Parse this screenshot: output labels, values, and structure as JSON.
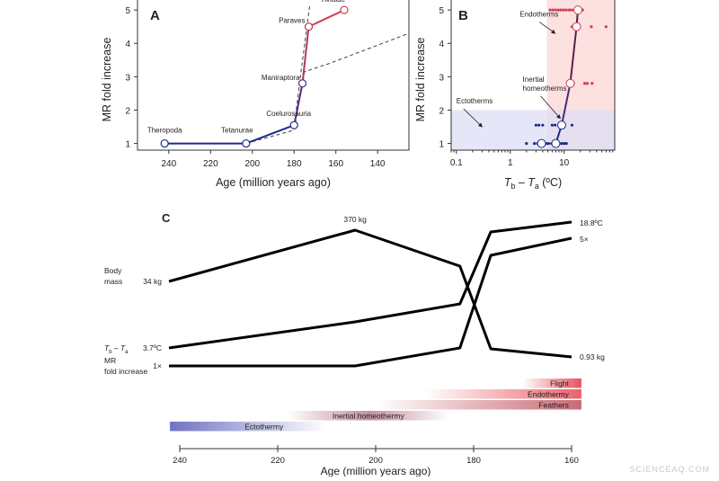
{
  "colors": {
    "ecto": "#1f2a8a",
    "endo": "#d0404e",
    "ecto_bg": "#dcdff5",
    "endo_bg": "#fde0e0",
    "dash": "#444444"
  },
  "watermark": "SCIENCEAQ.COM",
  "chart_data": [
    {
      "panel": "A",
      "type": "line",
      "xlabel": "Age (million years ago)",
      "ylabel": "MR fold increase",
      "xlim": [
        255,
        125
      ],
      "ylim": [
        0.8,
        5.3
      ],
      "xticks": [
        240,
        220,
        200,
        180,
        160,
        140
      ],
      "yticks": [
        1,
        2,
        3,
        4,
        5
      ],
      "points": [
        {
          "label": "Theropoda",
          "x": 242,
          "y": 1.0
        },
        {
          "label": "Tetanurae",
          "x": 203,
          "y": 1.0
        },
        {
          "label": "Coelurosauria",
          "x": 180,
          "y": 1.55
        },
        {
          "label": "Maniraptora",
          "x": 176,
          "y": 2.8
        },
        {
          "label": "Paraves",
          "x": 173,
          "y": 4.5
        },
        {
          "label": "Avialae",
          "x": 156,
          "y": 5.0
        }
      ],
      "dashed": [
        [
          [
            203,
            1.0
          ],
          [
            180,
            1.4
          ],
          [
            175,
            3.15
          ],
          [
            163,
            3.4
          ],
          [
            125,
            4.3
          ]
        ],
        [
          [
            180,
            1.45
          ],
          [
            177,
            3.0
          ],
          [
            172.5,
            5.15
          ]
        ]
      ]
    },
    {
      "panel": "B",
      "type": "scatter",
      "xlabel_main": "T",
      "xlabel_sub1": "b",
      "xlabel_mid": " – T",
      "xlabel_sub2": "a",
      "xlabel_unit": " (ºC)",
      "ylabel": "MR fold increase",
      "xscale": "log",
      "xlim": [
        0.08,
        87
      ],
      "ylim": [
        0.8,
        5.3
      ],
      "xticks": [
        0.1,
        1,
        10
      ],
      "yticks": [
        1,
        2,
        3,
        4,
        5
      ],
      "regions": [
        {
          "name": "Endotherms",
          "x_from": 4.8,
          "color": "endo_bg"
        },
        {
          "name": "Ectotherms",
          "y_to": 2,
          "color": "ecto_bg"
        }
      ],
      "annotations": [
        {
          "text": "Endotherms",
          "at": [
            1.5,
            4.8
          ],
          "arrow_to": [
            6.8,
            4.3
          ]
        },
        {
          "text": [
            "Inertial",
            "homeotherms"
          ],
          "at": [
            1.7,
            2.85
          ],
          "arrow_to": [
            8.5,
            1.75
          ]
        },
        {
          "text": "Ectotherms",
          "at": [
            0.1,
            2.2
          ],
          "arrow_to": [
            0.3,
            1.5
          ]
        }
      ],
      "means": [
        [
          3.8,
          1
        ],
        [
          7,
          1
        ],
        [
          9,
          1.55
        ],
        [
          13,
          2.8
        ],
        [
          17,
          4.5
        ],
        [
          18,
          5
        ]
      ],
      "dots": [
        [
          2,
          1
        ],
        [
          2.8,
          1
        ],
        [
          3.2,
          1
        ],
        [
          4.5,
          1
        ],
        [
          5,
          1
        ],
        [
          6,
          1
        ],
        [
          8,
          1
        ],
        [
          9,
          1
        ],
        [
          10,
          1
        ],
        [
          11,
          1
        ],
        [
          3,
          1.55
        ],
        [
          3.4,
          1.55
        ],
        [
          4,
          1.55
        ],
        [
          6,
          1.55
        ],
        [
          6.8,
          1.55
        ],
        [
          14,
          1.55
        ],
        [
          15,
          2.8
        ],
        [
          24,
          2.8
        ],
        [
          27,
          2.8
        ],
        [
          33,
          2.8
        ],
        [
          14,
          4.5
        ],
        [
          32,
          4.5
        ],
        [
          60,
          4.5
        ],
        [
          5.5,
          5
        ],
        [
          6.2,
          5
        ],
        [
          7,
          5
        ],
        [
          7.8,
          5
        ],
        [
          8.7,
          5
        ],
        [
          9.8,
          5
        ],
        [
          11,
          5
        ],
        [
          12.5,
          5
        ],
        [
          14,
          5
        ],
        [
          16,
          5
        ],
        [
          20,
          5
        ],
        [
          22,
          5
        ]
      ]
    },
    {
      "panel": "C",
      "type": "line",
      "xlabel": "Age (million years ago)",
      "xlim": [
        242,
        157
      ],
      "xticks": [
        240,
        220,
        200,
        180,
        160
      ],
      "series": [
        {
          "name": "Body mass",
          "label_lines": [
            "Body",
            "mass"
          ],
          "start_label": "34 kg",
          "peak_label": "370 kg",
          "end_label": "0.93 kg",
          "points": [
            [
              242.2,
              34
            ],
            [
              204.2,
              370
            ],
            [
              182.8,
              120
            ],
            [
              176.5,
              2
            ],
            [
              160,
              0.93
            ]
          ]
        },
        {
          "name": "Tb – Ta",
          "label_main": "T",
          "label_sub1": "b",
          "label_mid": " – T",
          "label_sub2": "a",
          "start_label": "3.7ºC",
          "end_label": "18.8ºC",
          "points": [
            [
              242.2,
              3.7
            ],
            [
              204.2,
              5.6
            ],
            [
              182.8,
              7.2
            ],
            [
              176.5,
              15.5
            ],
            [
              160,
              18.8
            ]
          ]
        },
        {
          "name": "MR fold increase",
          "label_lines": [
            "MR",
            "fold increase"
          ],
          "start_label": "1×",
          "end_label": "5×",
          "points": [
            [
              242.2,
              1
            ],
            [
              204.2,
              1
            ],
            [
              182.8,
              1.5
            ],
            [
              176.5,
              4.5
            ],
            [
              160,
              5
            ]
          ]
        }
      ],
      "bars": [
        {
          "label": "Flight",
          "from": 170,
          "to": 158,
          "color": "#e8545e",
          "fade": "left"
        },
        {
          "label": "Endothermy",
          "from": 190,
          "to": 158,
          "color": "#e8646c",
          "fade": "left"
        },
        {
          "label": "Feathers",
          "from": 200,
          "to": 158,
          "color": "#c96a74",
          "fade": "left"
        },
        {
          "label": "Inertial homeothermy",
          "from": 218,
          "to": 185,
          "color": "#b06a84",
          "fade": "both"
        },
        {
          "label": "Ectothermy",
          "from": 242,
          "to": 210,
          "color": "#6f73c2",
          "fade": "right"
        }
      ]
    }
  ]
}
